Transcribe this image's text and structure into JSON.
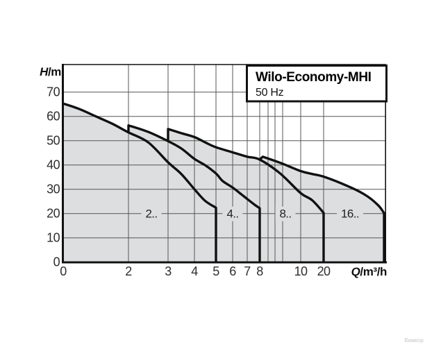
{
  "chart_data": {
    "type": "line",
    "title": "Wilo-Economy-MHI",
    "subtitle": "50 Hz",
    "xlabel": {
      "italic": "Q",
      "rest": "/m³/h"
    },
    "ylabel": {
      "italic": "H",
      "rest": "/m"
    },
    "x_ticks": [
      "0",
      "2",
      "3",
      "4",
      "5",
      "6",
      "7",
      "8",
      "10",
      "20"
    ],
    "y_ticks": [
      0,
      10,
      20,
      30,
      40,
      50,
      60,
      70
    ],
    "ylim": [
      0,
      81
    ],
    "grid": "on",
    "series": [
      {
        "name": "2..",
        "points": [
          [
            0,
            65.3
          ],
          [
            0.5,
            63
          ],
          [
            1,
            60
          ],
          [
            1.5,
            57
          ],
          [
            2,
            53.4
          ],
          [
            2.5,
            49.3
          ],
          [
            3,
            41.1
          ],
          [
            3.5,
            36.3
          ],
          [
            4,
            30
          ],
          [
            4.5,
            25.2
          ],
          [
            5,
            22.4
          ]
        ],
        "end_drop_q": 5
      },
      {
        "name": "4..",
        "step_from": [
          2,
          53.4
        ],
        "points": [
          [
            2,
            56.3
          ],
          [
            2.5,
            53.6
          ],
          [
            3,
            49.8
          ],
          [
            3.5,
            46.8
          ],
          [
            4,
            42.5
          ],
          [
            4.5,
            39.9
          ],
          [
            5,
            36.5
          ],
          [
            5.4,
            33.4
          ],
          [
            6,
            30.7
          ],
          [
            6.6,
            27.9
          ],
          [
            7,
            26
          ],
          [
            7.6,
            23.6
          ],
          [
            8,
            22.2
          ]
        ],
        "end_drop_q": 8
      },
      {
        "name": "8..",
        "step_from": [
          3,
          49.8
        ],
        "points": [
          [
            3,
            54.8
          ],
          [
            3.5,
            53.1
          ],
          [
            4,
            51.5
          ],
          [
            4.5,
            49.3
          ],
          [
            5,
            47.3
          ],
          [
            6,
            45.2
          ],
          [
            7,
            43.4
          ],
          [
            8,
            42.2
          ],
          [
            9,
            36.5
          ],
          [
            10,
            28.4
          ],
          [
            15,
            25.5
          ],
          [
            20,
            20.3
          ]
        ],
        "end_drop_q": 20
      },
      {
        "name": "16..",
        "step_from": [
          8,
          42.2
        ],
        "points": [
          [
            8.15,
            43.4
          ],
          [
            9,
            40.9
          ],
          [
            10,
            37.5
          ],
          [
            15,
            36.3
          ],
          [
            20,
            35.2
          ],
          [
            22,
            31.3
          ],
          [
            23.5,
            27.5
          ],
          [
            24.5,
            23.5
          ],
          [
            25,
            20.2
          ]
        ],
        "end_drop_q": 25
      }
    ]
  },
  "watermark": "Вимкор",
  "colors": {
    "shade": "#dddedf",
    "grid": "#555555",
    "curve": "#111111"
  }
}
